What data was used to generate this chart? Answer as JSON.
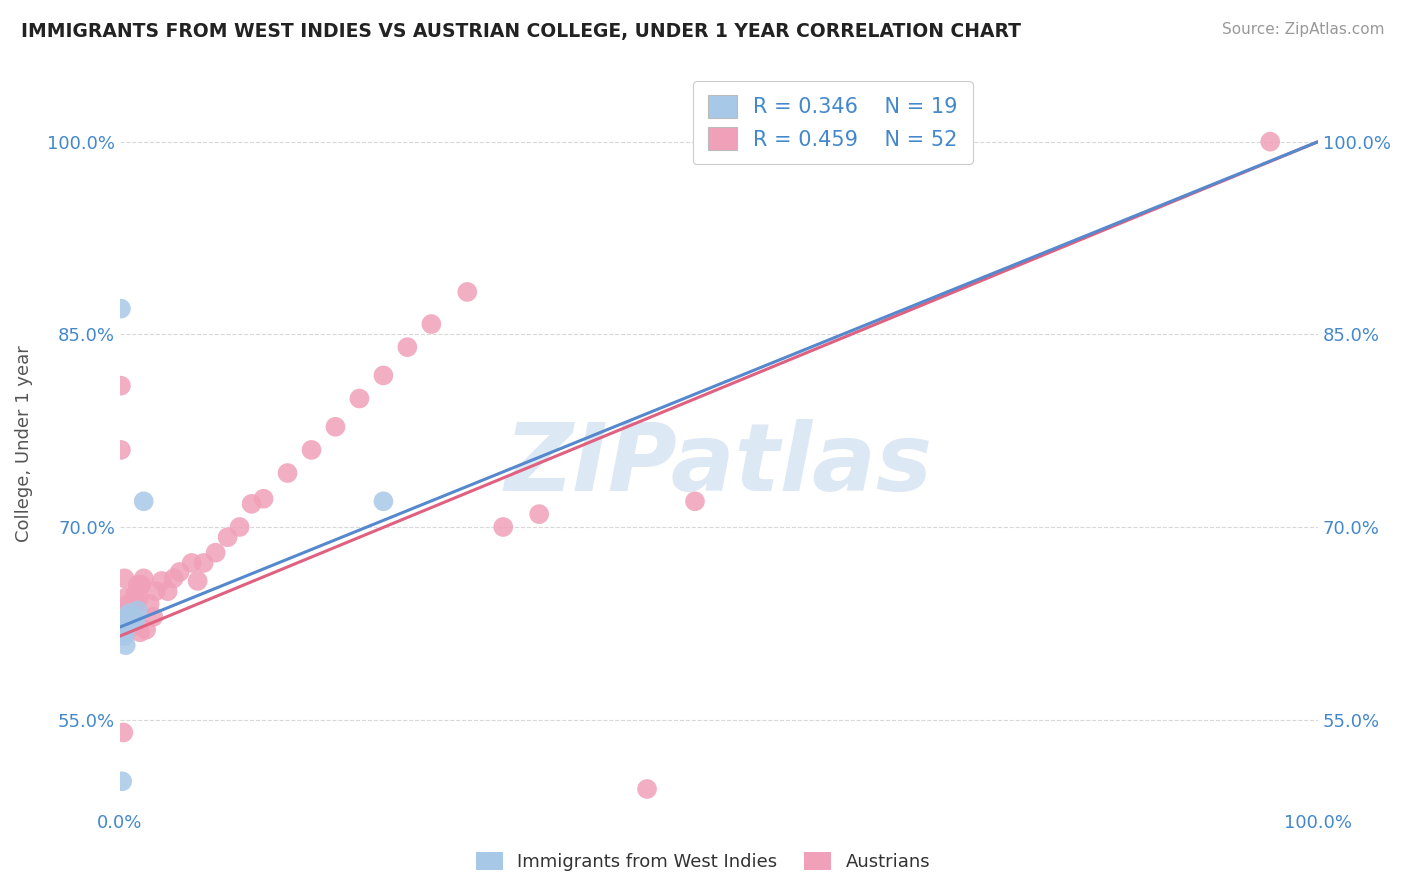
{
  "title": "IMMIGRANTS FROM WEST INDIES VS AUSTRIAN COLLEGE, UNDER 1 YEAR CORRELATION CHART",
  "source": "Source: ZipAtlas.com",
  "ylabel": "College, Under 1 year",
  "xlim": [
    0.0,
    1.0
  ],
  "ylim": [
    0.48,
    1.05
  ],
  "x_tick_labels": [
    "0.0%",
    "100.0%"
  ],
  "x_tick_values": [
    0.0,
    1.0
  ],
  "y_tick_labels": [
    "55.0%",
    "70.0%",
    "85.0%",
    "100.0%"
  ],
  "y_tick_values": [
    0.55,
    0.7,
    0.85,
    1.0
  ],
  "color_blue": "#a8c8e8",
  "color_pink": "#f0a0b8",
  "line_color_blue": "#5588cc",
  "line_color_pink": "#e06080",
  "watermark_text": "ZIPatlas",
  "watermark_color": "#dde8f5",
  "background_color": "#ffffff",
  "grid_color": "#d8d8d8",
  "title_color": "#222222",
  "axis_label_color": "#555555",
  "tick_label_color": "#4488cc",
  "legend_label1": "Immigrants from West Indies",
  "legend_label2": "Austrians",
  "legend_r1": "R = 0.346",
  "legend_n1": "N = 19",
  "legend_r2": "R = 0.459",
  "legend_n2": "N = 52",
  "wi_x": [
    0.001,
    0.001,
    0.002,
    0.003,
    0.004,
    0.005,
    0.005,
    0.006,
    0.007,
    0.007,
    0.008,
    0.009,
    0.01,
    0.011,
    0.013,
    0.015,
    0.02,
    0.22,
    0.002
  ],
  "wi_y": [
    0.87,
    0.62,
    0.625,
    0.618,
    0.615,
    0.608,
    0.625,
    0.622,
    0.63,
    0.628,
    0.633,
    0.63,
    0.626,
    0.631,
    0.628,
    0.635,
    0.72,
    0.72,
    0.502
  ],
  "au_x": [
    0.001,
    0.001,
    0.001,
    0.002,
    0.003,
    0.004,
    0.004,
    0.005,
    0.006,
    0.007,
    0.007,
    0.008,
    0.009,
    0.01,
    0.011,
    0.012,
    0.013,
    0.014,
    0.015,
    0.016,
    0.017,
    0.018,
    0.02,
    0.022,
    0.025,
    0.028,
    0.03,
    0.035,
    0.04,
    0.045,
    0.05,
    0.06,
    0.065,
    0.07,
    0.08,
    0.09,
    0.1,
    0.11,
    0.12,
    0.14,
    0.16,
    0.18,
    0.2,
    0.22,
    0.24,
    0.26,
    0.29,
    0.32,
    0.35,
    0.44,
    0.48,
    0.96
  ],
  "au_y": [
    0.76,
    0.81,
    0.63,
    0.635,
    0.54,
    0.625,
    0.66,
    0.645,
    0.635,
    0.625,
    0.64,
    0.628,
    0.635,
    0.622,
    0.63,
    0.64,
    0.648,
    0.638,
    0.655,
    0.645,
    0.618,
    0.655,
    0.66,
    0.62,
    0.64,
    0.63,
    0.65,
    0.658,
    0.65,
    0.66,
    0.665,
    0.672,
    0.658,
    0.672,
    0.68,
    0.692,
    0.7,
    0.718,
    0.722,
    0.742,
    0.76,
    0.778,
    0.8,
    0.818,
    0.84,
    0.858,
    0.883,
    0.7,
    0.71,
    0.496,
    0.72,
    1.0
  ]
}
